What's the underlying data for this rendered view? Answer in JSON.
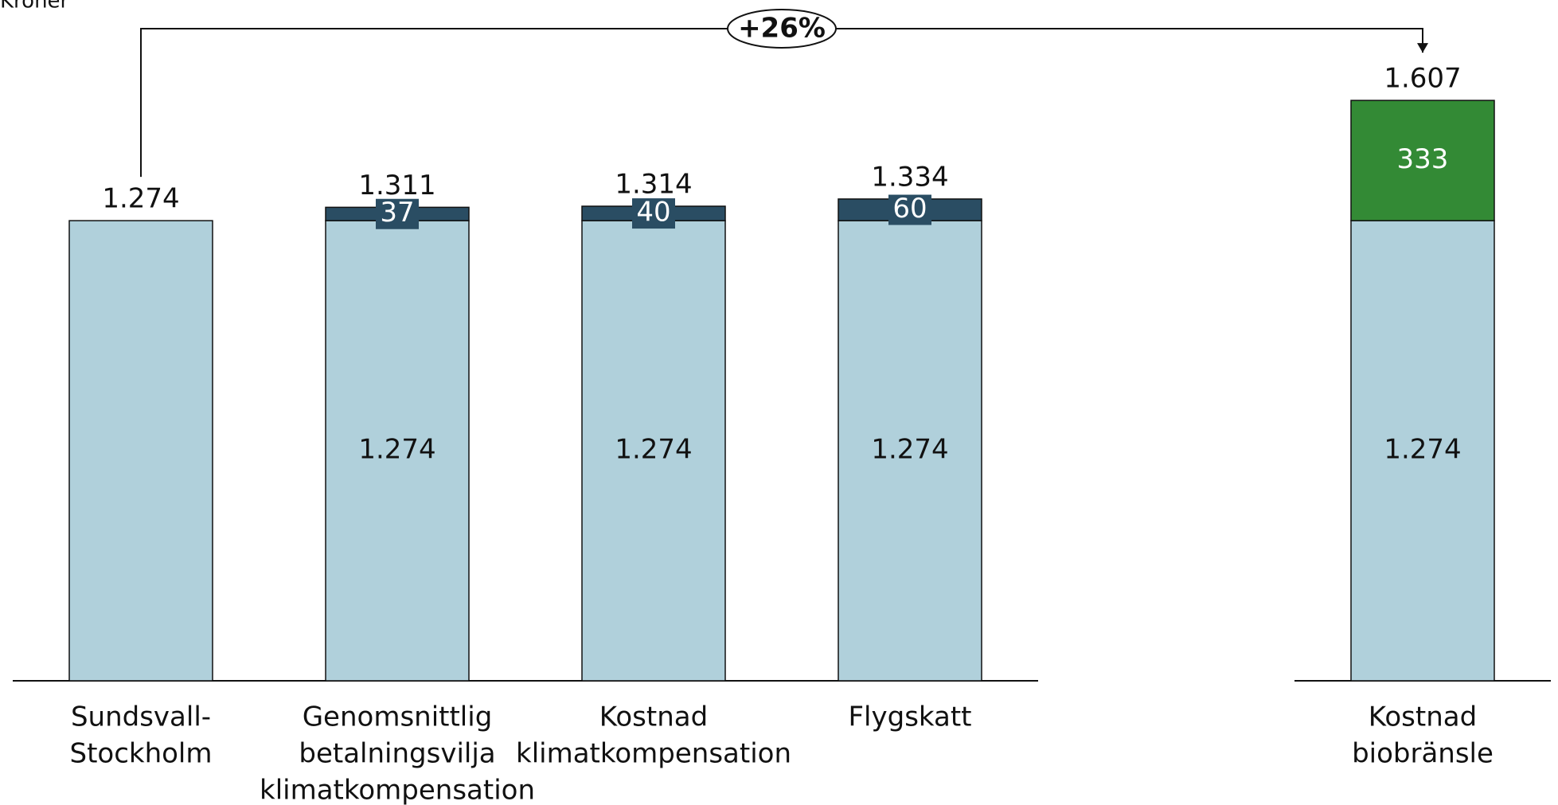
{
  "chart_data": {
    "type": "stacked_bar",
    "y_label": "Kroner",
    "categories": [
      [
        "Sundsvall-",
        "Stockholm"
      ],
      [
        "Genomsnittlig",
        "betalningsvilja",
        "klimatkompensation"
      ],
      [
        "Kostnad",
        "klimatkompensation"
      ],
      [
        "Flygskatt"
      ],
      null,
      [
        "Kostnad",
        "biobränsle"
      ]
    ],
    "series": [
      {
        "color": "#b0d0db",
        "values": [
          1274,
          1274,
          1274,
          1274,
          null,
          1274
        ],
        "value_labels": [
          null,
          "1.274",
          "1.274",
          "1.274",
          null,
          "1.274"
        ]
      },
      {
        "color": "#2a4d63",
        "values": [
          null,
          37,
          40,
          60,
          null,
          null
        ]
      },
      {
        "color": "#338a35",
        "values": [
          null,
          null,
          null,
          null,
          null,
          333
        ]
      }
    ],
    "totals": {
      "values": [
        1274,
        1311,
        1314,
        1334,
        null,
        1607
      ],
      "value_labels": [
        "1.274",
        "1.311",
        "1.314",
        "1.334",
        null,
        "1.607"
      ]
    },
    "annotation": "+26%",
    "ylim": [
      0,
      1885
    ]
  }
}
